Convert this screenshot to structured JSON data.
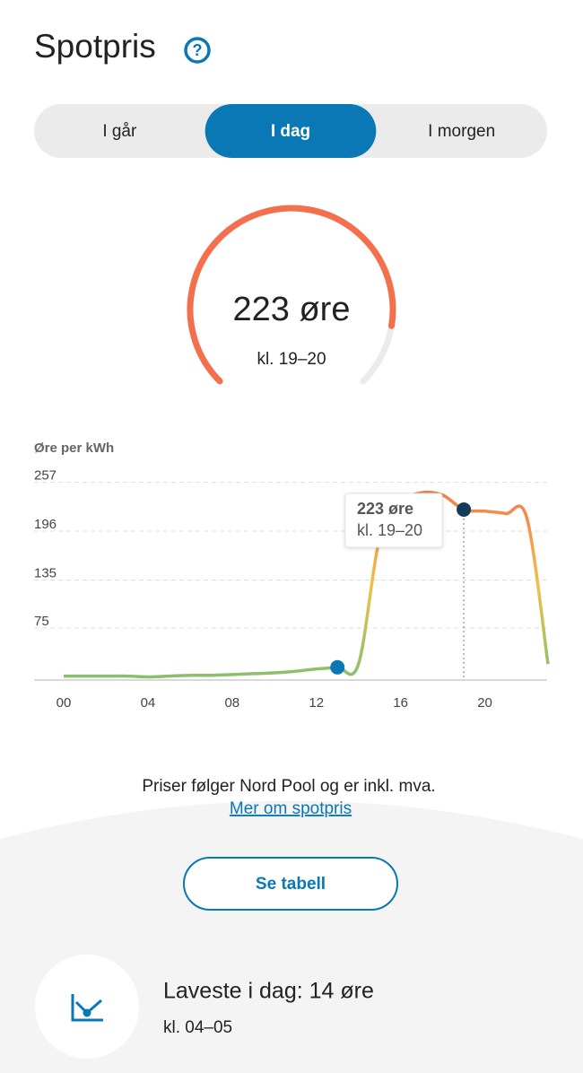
{
  "header": {
    "title": "Spotpris"
  },
  "tabs": [
    {
      "label": "I går"
    },
    {
      "label": "I dag",
      "selected": true
    },
    {
      "label": "I morgen"
    }
  ],
  "gauge": {
    "value": 223,
    "max": 257,
    "value_label": "223 øre",
    "period": "kl. 19–20",
    "color": "#f4704c"
  },
  "chart_data": {
    "type": "line",
    "y_label": "Øre per kWh",
    "x": [
      0,
      1,
      2,
      3,
      4,
      5,
      6,
      7,
      8,
      9,
      10,
      11,
      12,
      13,
      14,
      15,
      16,
      17,
      18,
      19,
      20,
      21,
      22,
      23
    ],
    "series": [
      {
        "name": "Spotpris",
        "colors": [
          "#7dbf72",
          "#f0c04a",
          "#f4764a"
        ],
        "values": [
          15,
          15,
          15,
          15,
          14,
          15,
          16,
          16,
          17,
          18,
          19,
          21,
          24,
          26,
          30,
          187,
          232,
          244,
          241,
          223,
          221,
          218,
          212,
          30
        ]
      }
    ],
    "xlim": [
      0,
      23
    ],
    "xticks": [
      {
        "value": 0,
        "label": "00"
      },
      {
        "value": 4,
        "label": "04"
      },
      {
        "value": 8,
        "label": "08"
      },
      12,
      16,
      20
    ],
    "ylim": [
      0,
      270
    ],
    "yticks": [
      75,
      135,
      196,
      257
    ],
    "grid": true,
    "markers": [
      {
        "x": 13,
        "color": "#0a78b4"
      },
      {
        "x": 19,
        "color": "#143c5a"
      }
    ],
    "tooltip": {
      "value_label": "223 øre",
      "period": "kl. 19–20"
    }
  },
  "footer": {
    "note": "Priser følger Nord Pool og er inkl. mva.",
    "link": "Mer om spotpris",
    "button": "Se tabell"
  },
  "lowest": {
    "title": "Laveste i dag: 14 øre",
    "period": "kl. 04–05"
  }
}
